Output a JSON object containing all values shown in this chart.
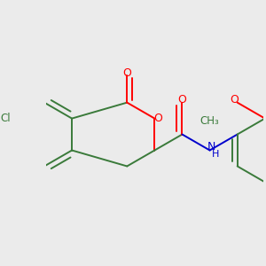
{
  "background_color": "#ebebeb",
  "bond_color": "#3a7a3a",
  "atom_colors": {
    "O": "#ff0000",
    "N": "#0000cc",
    "Cl": "#3a7a3a",
    "C": "#3a7a3a"
  },
  "figsize": [
    3.0,
    3.0
  ],
  "dpi": 100
}
